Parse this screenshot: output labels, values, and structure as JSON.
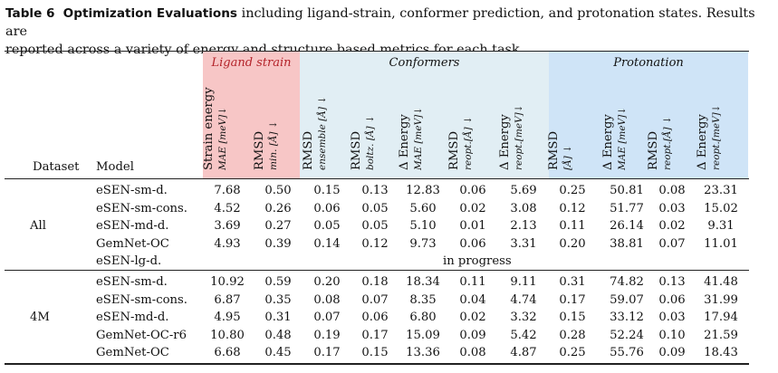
{
  "caption": {
    "label": "Table 6",
    "title": "Optimization Evaluations",
    "text_line1": " including ligand-strain, conformer prediction, and protonation states. Results are",
    "text_line2": "reported across a variety of energy and structure based metrics for each task."
  },
  "colors": {
    "ligand_bg": "#f7c6c6",
    "conf_bg": "#e1eef4",
    "proton_bg": "#cfe4f7",
    "ligand_title": "#b4232a"
  },
  "groups": [
    {
      "label": "Ligand strain"
    },
    {
      "label": "Conformers"
    },
    {
      "label": "Protonation"
    }
  ],
  "headers": {
    "dataset": "Dataset",
    "model": "Model",
    "columns": [
      {
        "main": "Strain energy",
        "sub": "MAE [meV]↓"
      },
      {
        "main": "RMSD",
        "sub": "min. [Å] ↓"
      },
      {
        "main": "RMSD",
        "sub": "ensemble [Å] ↓"
      },
      {
        "main": "RMSD",
        "sub": "boltz. [Å] ↓"
      },
      {
        "main": "Δ Energy",
        "sub": "MAE [meV]↓"
      },
      {
        "main": "RMSD",
        "sub": "reopt.[Å] ↓"
      },
      {
        "main": "Δ Energy",
        "sub": "reopt.[meV]↓"
      },
      {
        "main": "RMSD",
        "sub": "[Å] ↓"
      },
      {
        "main": "Δ Energy",
        "sub": "MAE [meV]↓"
      },
      {
        "main": "RMSD",
        "sub": "reopt.[Å] ↓"
      },
      {
        "main": "Δ Energy",
        "sub": "reopt.[meV]↓"
      }
    ]
  },
  "sections": [
    {
      "dataset": "All",
      "rows": [
        {
          "model": "eSEN-sm-d.",
          "values": [
            "7.68",
            "0.50",
            "0.15",
            "0.13",
            "12.83",
            "0.06",
            "5.69",
            "0.25",
            "50.81",
            "0.08",
            "23.31"
          ]
        },
        {
          "model": "eSEN-sm-cons.",
          "values": [
            "4.52",
            "0.26",
            "0.06",
            "0.05",
            "5.60",
            "0.02",
            "3.08",
            "0.12",
            "51.77",
            "0.03",
            "15.02"
          ]
        },
        {
          "model": "eSEN-md-d.",
          "values": [
            "3.69",
            "0.27",
            "0.05",
            "0.05",
            "5.10",
            "0.01",
            "2.13",
            "0.11",
            "26.14",
            "0.02",
            "9.31"
          ]
        },
        {
          "model": "GemNet-OC",
          "values": [
            "4.93",
            "0.39",
            "0.14",
            "0.12",
            "9.73",
            "0.06",
            "3.31",
            "0.20",
            "38.81",
            "0.07",
            "11.01"
          ]
        },
        {
          "model": "eSEN-lg-d.",
          "note": "in progress"
        }
      ]
    },
    {
      "dataset": "4M",
      "rows": [
        {
          "model": "eSEN-sm-d.",
          "values": [
            "10.92",
            "0.59",
            "0.20",
            "0.18",
            "18.34",
            "0.11",
            "9.11",
            "0.31",
            "74.82",
            "0.13",
            "41.48"
          ]
        },
        {
          "model": "eSEN-sm-cons.",
          "values": [
            "6.87",
            "0.35",
            "0.08",
            "0.07",
            "8.35",
            "0.04",
            "4.74",
            "0.17",
            "59.07",
            "0.06",
            "31.99"
          ]
        },
        {
          "model": "eSEN-md-d.",
          "values": [
            "4.95",
            "0.31",
            "0.07",
            "0.06",
            "6.80",
            "0.02",
            "3.32",
            "0.15",
            "33.12",
            "0.03",
            "17.94"
          ]
        },
        {
          "model": "GemNet-OC-r6",
          "values": [
            "10.80",
            "0.48",
            "0.19",
            "0.17",
            "15.09",
            "0.09",
            "5.42",
            "0.28",
            "52.24",
            "0.10",
            "21.59"
          ]
        },
        {
          "model": "GemNet-OC",
          "values": [
            "6.68",
            "0.45",
            "0.17",
            "0.15",
            "13.36",
            "0.08",
            "4.87",
            "0.25",
            "55.76",
            "0.09",
            "18.43"
          ]
        }
      ]
    }
  ]
}
